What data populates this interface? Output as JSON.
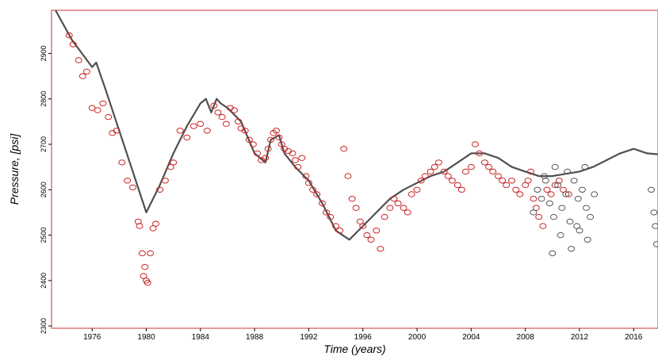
{
  "chart_data": {
    "type": "scatter",
    "title": "",
    "xlabel": "Time (years)",
    "ylabel": "Pressure, [psi]",
    "xlim": [
      1973,
      2017.8
    ],
    "ylim": [
      2295,
      2995
    ],
    "x_ticks": [
      1976,
      1980,
      1984,
      1988,
      1992,
      1996,
      2000,
      2004,
      2008,
      2012,
      2016
    ],
    "y_ticks": [
      2300,
      2400,
      2500,
      2600,
      2700,
      2800,
      2900
    ],
    "grid": false,
    "legend": "none",
    "colors": {
      "frame": "#cc3333",
      "observed": "#cc2222",
      "future": "#555555",
      "simulated": "#505050"
    },
    "simulated_line": {
      "x": [
        1973.3,
        1974.5,
        1976.0,
        1976.3,
        1977.0,
        1978.0,
        1979.0,
        1980.0,
        1981.0,
        1982.0,
        1983.0,
        1984.0,
        1984.4,
        1984.8,
        1985.2,
        1985.5,
        1986.0,
        1987.0,
        1988.0,
        1988.8,
        1989.2,
        1989.8,
        1990.2,
        1991.0,
        1992.0,
        1993.0,
        1994.0,
        1995.0,
        1996.0,
        1997.0,
        1998.0,
        1999.0,
        2000.0,
        2001.0,
        2002.0,
        2003.0,
        2004.0,
        2005.0,
        2006.0,
        2007.0,
        2008.0,
        2009.0,
        2010.0,
        2011.0,
        2012.0,
        2013.0,
        2014.0,
        2015.0,
        2016.0,
        2017.0,
        2017.8
      ],
      "y": [
        3000,
        2930,
        2870,
        2880,
        2820,
        2730,
        2640,
        2550,
        2610,
        2680,
        2740,
        2790,
        2800,
        2770,
        2800,
        2790,
        2780,
        2750,
        2680,
        2660,
        2710,
        2720,
        2680,
        2650,
        2620,
        2570,
        2510,
        2490,
        2520,
        2550,
        2580,
        2600,
        2615,
        2630,
        2640,
        2660,
        2680,
        2680,
        2670,
        2650,
        2640,
        2630,
        2630,
        2635,
        2640,
        2650,
        2665,
        2680,
        2690,
        2680,
        2678
      ]
    },
    "series": [
      {
        "style": "observed",
        "x": [
          1974.3,
          1974.6,
          1975.0,
          1975.3,
          1975.6,
          1976.0,
          1976.4,
          1976.8,
          1977.2,
          1977.5,
          1977.8,
          1978.2,
          1978.6,
          1979.0,
          1979.4,
          1979.5,
          1979.7,
          1979.8,
          1979.9,
          1980.0,
          1980.1,
          1980.3,
          1980.5,
          1980.7,
          1981.0,
          1981.4,
          1981.8,
          1982.0,
          1982.5,
          1983.0,
          1983.5,
          1984.0,
          1984.5,
          1985.0,
          1985.3,
          1985.6,
          1985.9,
          1986.2,
          1986.5,
          1986.8,
          1987.0,
          1987.3,
          1987.6,
          1987.9,
          1988.2,
          1988.5,
          1988.8,
          1989.0,
          1989.2,
          1989.4,
          1989.6,
          1989.8,
          1990.0,
          1990.2,
          1990.5,
          1990.8,
          1991.0,
          1991.2,
          1991.5,
          1991.8,
          1992.0,
          1992.3,
          1992.6,
          1993.0,
          1993.3,
          1993.6,
          1994.0,
          1994.3,
          1994.6,
          1994.9,
          1995.2,
          1995.5,
          1995.8,
          1996.0,
          1996.3,
          1996.6,
          1997.0,
          1997.3,
          1997.6,
          1998.0,
          1998.3,
          1998.6,
          1999.0,
          1999.3,
          1999.6,
          2000.0,
          2000.3,
          2000.6,
          2001.0,
          2001.3,
          2001.6,
          2002.0,
          2002.3,
          2002.6,
          2003.0,
          2003.3,
          2003.6,
          2004.0,
          2004.3,
          2004.6,
          2005.0,
          2005.3,
          2005.6,
          2006.0,
          2006.3,
          2006.6,
          2007.0,
          2007.3,
          2007.6,
          2008.0,
          2008.2,
          2008.4,
          2008.6,
          2008.8,
          2009.0,
          2009.3,
          2009.6,
          2009.9,
          2010.2,
          2010.5,
          2010.8,
          2011.2
        ],
        "y": [
          2940,
          2920,
          2885,
          2850,
          2860,
          2780,
          2775,
          2790,
          2760,
          2725,
          2730,
          2660,
          2620,
          2605,
          2530,
          2520,
          2460,
          2410,
          2430,
          2400,
          2395,
          2460,
          2515,
          2525,
          2600,
          2620,
          2650,
          2660,
          2730,
          2715,
          2740,
          2745,
          2730,
          2785,
          2770,
          2760,
          2745,
          2780,
          2775,
          2750,
          2735,
          2730,
          2710,
          2700,
          2680,
          2665,
          2670,
          2690,
          2710,
          2725,
          2730,
          2715,
          2700,
          2690,
          2685,
          2680,
          2665,
          2650,
          2670,
          2630,
          2615,
          2600,
          2590,
          2570,
          2550,
          2540,
          2520,
          2510,
          2690,
          2630,
          2580,
          2560,
          2530,
          2520,
          2500,
          2490,
          2510,
          2470,
          2540,
          2560,
          2580,
          2570,
          2560,
          2550,
          2590,
          2600,
          2620,
          2630,
          2640,
          2650,
          2660,
          2640,
          2630,
          2620,
          2610,
          2600,
          2640,
          2650,
          2700,
          2680,
          2660,
          2650,
          2640,
          2630,
          2620,
          2610,
          2620,
          2600,
          2590,
          2610,
          2620,
          2640,
          2580,
          2560,
          2540,
          2520,
          2600,
          2590,
          2610,
          2620,
          2600,
          2590
        ]
      },
      {
        "style": "future",
        "x": [
          2008.6,
          2008.9,
          2009.2,
          2009.5,
          2009.8,
          2010.1,
          2010.4,
          2010.7,
          2011.0,
          2011.3,
          2011.6,
          2011.9,
          2012.2,
          2012.5,
          2012.8,
          2013.1,
          2010.0,
          2010.6,
          2011.4,
          2012.0,
          2012.6,
          2009.4,
          2010.2,
          2011.1,
          2011.8,
          2012.4,
          2017.3,
          2017.5,
          2017.6,
          2017.7
        ],
        "y": [
          2550,
          2600,
          2580,
          2620,
          2570,
          2540,
          2610,
          2560,
          2590,
          2530,
          2620,
          2580,
          2600,
          2560,
          2540,
          2590,
          2460,
          2500,
          2470,
          2510,
          2490,
          2630,
          2650,
          2640,
          2520,
          2650,
          2600,
          2550,
          2520,
          2480
        ]
      }
    ]
  }
}
